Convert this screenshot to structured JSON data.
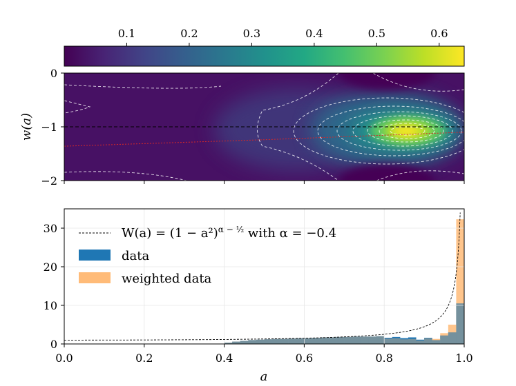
{
  "chart_data": [
    {
      "type": "colorbar",
      "colormap": "viridis",
      "range": [
        0.0,
        0.64
      ],
      "tick_labels": [
        "0.1",
        "0.2",
        "0.3",
        "0.4",
        "0.5",
        "0.6"
      ],
      "tick_values": [
        0.1,
        0.2,
        0.3,
        0.4,
        0.5,
        0.6
      ]
    },
    {
      "type": "heatmap",
      "xlim": [
        0.0,
        1.0
      ],
      "ylim": [
        -2,
        0
      ],
      "ylabel": "w(a)",
      "y_tick_labels": [
        "0",
        "−1",
        "−2"
      ],
      "y_tick_values": [
        0,
        -1,
        -2
      ],
      "x_tick_values": [
        0.0,
        0.2,
        0.4,
        0.6,
        0.8,
        1.0
      ],
      "peak": {
        "a": 0.86,
        "w": -1.1,
        "value": 0.64
      },
      "reference_line_w": -1.0,
      "fit_line": [
        [
          0.0,
          -1.36
        ],
        [
          0.5,
          -1.24
        ],
        [
          1.0,
          -1.1
        ]
      ],
      "contours": "white dashed"
    },
    {
      "type": "bar",
      "xlabel": "a",
      "xlim": [
        0.0,
        1.0
      ],
      "ylim": [
        0,
        35
      ],
      "x_tick_labels": [
        "0.0",
        "0.2",
        "0.4",
        "0.6",
        "0.8",
        "1.0"
      ],
      "x_tick_values": [
        0.0,
        0.2,
        0.4,
        0.6,
        0.8,
        1.0
      ],
      "y_tick_labels": [
        "0",
        "10",
        "20",
        "30"
      ],
      "y_tick_values": [
        0,
        10,
        20,
        30
      ],
      "bin_edges": [
        0.4,
        0.42,
        0.44,
        0.46,
        0.48,
        0.5,
        0.52,
        0.54,
        0.56,
        0.58,
        0.6,
        0.62,
        0.64,
        0.66,
        0.68,
        0.7,
        0.72,
        0.74,
        0.76,
        0.78,
        0.8,
        0.82,
        0.84,
        0.86,
        0.88,
        0.9,
        0.92,
        0.94,
        0.96,
        0.98,
        1.0
      ],
      "series": [
        {
          "name": "data",
          "color": "#1f77b4",
          "values": [
            0.3,
            0.6,
            0.8,
            1.0,
            1.1,
            1.2,
            1.3,
            1.3,
            1.4,
            1.5,
            1.5,
            1.6,
            1.7,
            1.7,
            1.8,
            1.8,
            1.9,
            1.9,
            1.9,
            2.0,
            1.6,
            1.8,
            1.5,
            1.7,
            1.1,
            1.6,
            1.0,
            2.2,
            3.0,
            10.5
          ]
        },
        {
          "name": "weighted data",
          "color": "#ffbb78",
          "values": [
            0.3,
            0.6,
            0.8,
            1.0,
            1.1,
            1.2,
            1.3,
            1.3,
            1.4,
            1.5,
            1.5,
            1.6,
            1.7,
            1.7,
            1.8,
            1.8,
            1.9,
            1.9,
            1.9,
            2.0,
            1.4,
            1.5,
            1.2,
            1.3,
            0.9,
            1.5,
            1.3,
            2.8,
            5.0,
            32.3
          ]
        }
      ],
      "curve": {
        "name": "W(a) = (1 − a²)^(α − ½) with α = −0.4",
        "alpha": -0.4
      }
    }
  ],
  "legend": {
    "curve_label": "W(a) = (1 − a²)",
    "curve_exponent": "α − ½",
    "curve_suffix": " with α = −0.4",
    "data_label": "data",
    "weighted_label": "weighted data"
  }
}
